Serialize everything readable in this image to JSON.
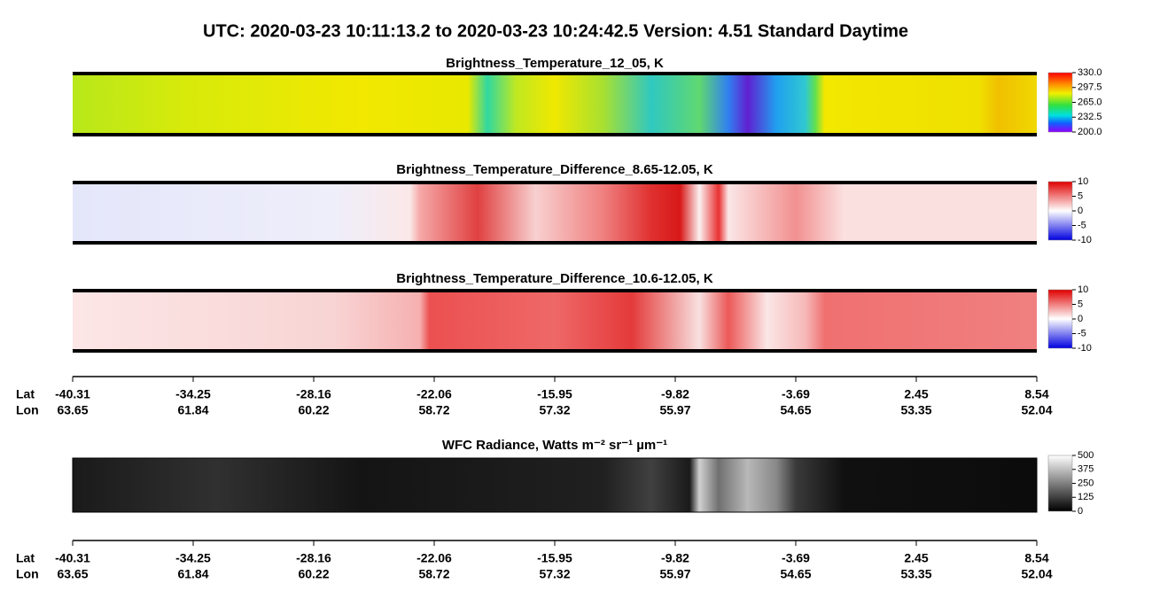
{
  "header": {
    "title": "UTC:  2020-03-23   10:11:13.2  to  2020-03-23   10:24:42.5    Version: 4.51  Standard Daytime"
  },
  "panels": [
    {
      "title": "Brightness_Temperature_12_05, K",
      "colorbar": [
        "330.0",
        "297.5",
        "265.0",
        "232.5",
        "200.0"
      ]
    },
    {
      "title": "Brightness_Temperature_Difference_8.65-12.05, K",
      "colorbar": [
        "10",
        "5",
        "0",
        "-5",
        "-10"
      ]
    },
    {
      "title": "Brightness_Temperature_Difference_10.6-12.05, K",
      "colorbar": [
        "10",
        "5",
        "0",
        "-5",
        "-10"
      ]
    },
    {
      "title": "WFC Radiance, Watts m⁻² sr⁻¹ µm⁻¹",
      "colorbar": [
        "500",
        "375",
        "250",
        "125",
        "0"
      ]
    }
  ],
  "axes": [
    {
      "lat_label": "Lat",
      "lon_label": "Lon",
      "lat": [
        "-40.31",
        "-34.25",
        "-28.16",
        "-22.06",
        "-15.95",
        "-9.82",
        "-3.69",
        "2.45",
        "8.54"
      ],
      "lon": [
        "63.65",
        "61.84",
        "60.22",
        "58.72",
        "57.32",
        "55.97",
        "54.65",
        "53.35",
        "52.04"
      ]
    },
    {
      "lat_label": "Lat",
      "lon_label": "Lon",
      "lat": [
        "-40.31",
        "-34.25",
        "-28.16",
        "-22.06",
        "-15.95",
        "-9.82",
        "-3.69",
        "2.45",
        "8.54"
      ],
      "lon": [
        "63.65",
        "61.84",
        "60.22",
        "58.72",
        "57.32",
        "55.97",
        "54.65",
        "53.35",
        "52.04"
      ]
    }
  ]
}
